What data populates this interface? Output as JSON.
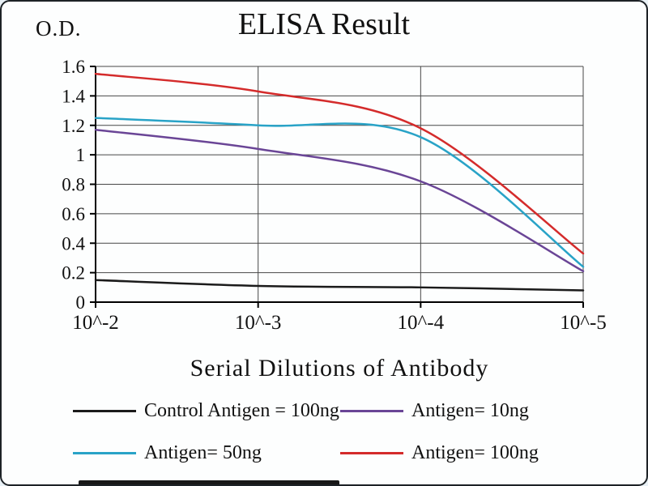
{
  "chart": {
    "od_label": "O.D."
  },
  "chart_data": {
    "type": "line",
    "title": "ELISA Result",
    "xlabel": "Serial Dilutions  of Antibody",
    "ylabel": "O.D.",
    "x_tick_labels": [
      "10^-2",
      "10^-3",
      "10^-4",
      "10^-5"
    ],
    "y_tick_labels": [
      "0",
      "0.2",
      "0.4",
      "0.6",
      "0.8",
      "1",
      "1.2",
      "1.4",
      "1.6"
    ],
    "ylim": [
      0,
      1.6
    ],
    "grid": true,
    "legend_position": "bottom",
    "series": [
      {
        "name": "Control Antigen = 100ng",
        "color": "#1b1b1b",
        "values": [
          0.15,
          0.11,
          0.1,
          0.08
        ]
      },
      {
        "name": "Antigen= 10ng",
        "color": "#6a4596",
        "values": [
          1.17,
          1.04,
          0.82,
          0.21
        ]
      },
      {
        "name": "Antigen= 50ng",
        "color": "#29a3c7",
        "values": [
          1.25,
          1.2,
          1.12,
          0.24
        ]
      },
      {
        "name": "Antigen= 100ng",
        "color": "#d42b2b",
        "values": [
          1.55,
          1.43,
          1.18,
          0.33
        ]
      }
    ],
    "colors": {
      "grid": "#474747",
      "axis": "#000000"
    }
  }
}
